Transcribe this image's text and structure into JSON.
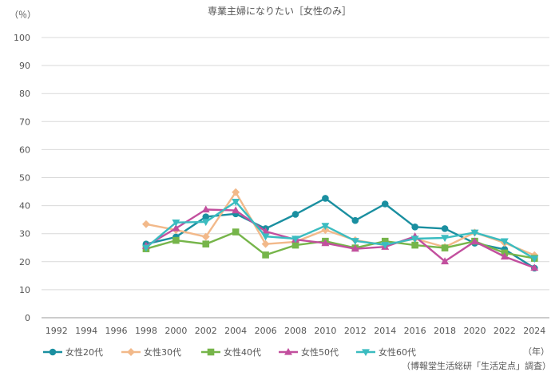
{
  "chart_data": {
    "type": "line",
    "title": "専業主婦になりたい［女性のみ］",
    "ylabel": "（％）",
    "xlabel": "（年）",
    "source": "（博報堂生活総研「生活定点」調査）",
    "ylim": [
      0,
      100
    ],
    "yticks": [
      0,
      10,
      20,
      30,
      40,
      50,
      60,
      70,
      80,
      90,
      100
    ],
    "x": [
      "1992",
      "1994",
      "1996",
      "1998",
      "2000",
      "2002",
      "2004",
      "2006",
      "2008",
      "2010",
      "2012",
      "2014",
      "2016",
      "2018",
      "2020",
      "2022",
      "2024"
    ],
    "grid": "horizontal",
    "legend_position": "bottom",
    "series": [
      {
        "name": "女性20代",
        "color": "#1a8fa0",
        "marker": "circle",
        "values": [
          null,
          null,
          null,
          26.3,
          28.8,
          36.0,
          37.1,
          31.8,
          36.9,
          42.6,
          34.7,
          40.6,
          32.4,
          31.8,
          26.6,
          24.4,
          17.7
        ]
      },
      {
        "name": "女性30代",
        "color": "#f2b98a",
        "marker": "diamond",
        "values": [
          null,
          null,
          null,
          33.4,
          31.3,
          28.9,
          44.8,
          26.3,
          27.1,
          31.3,
          27.7,
          25.9,
          28.2,
          25.2,
          30.4,
          26.7,
          22.3
        ]
      },
      {
        "name": "女性40代",
        "color": "#76b54a",
        "marker": "square",
        "values": [
          null,
          null,
          null,
          24.6,
          27.6,
          26.3,
          30.6,
          22.4,
          25.9,
          27.3,
          24.9,
          27.3,
          25.9,
          24.9,
          27.3,
          23.1,
          21.2
        ]
      },
      {
        "name": "女性50代",
        "color": "#c24f9e",
        "marker": "triangle-up",
        "values": [
          null,
          null,
          null,
          25.6,
          31.9,
          38.6,
          38.3,
          30.8,
          27.9,
          26.6,
          24.6,
          25.3,
          29.0,
          20.1,
          27.2,
          21.8,
          17.8
        ]
      },
      {
        "name": "女性60代",
        "color": "#3bbcc0",
        "marker": "triangle-down",
        "values": [
          null,
          null,
          null,
          25.0,
          34.0,
          34.2,
          41.4,
          29.0,
          28.2,
          32.8,
          27.4,
          26.0,
          28.2,
          28.5,
          30.4,
          27.3,
          21.1
        ]
      }
    ]
  }
}
